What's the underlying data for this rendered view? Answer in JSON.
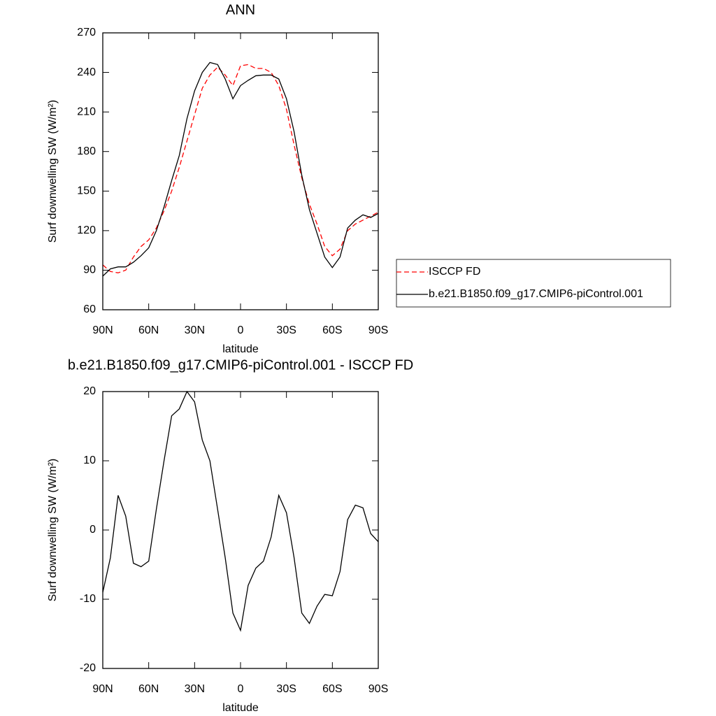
{
  "chart_data": [
    {
      "type": "line",
      "title": "ANN",
      "xlabel": "latitude",
      "ylabel": "Surf downwelling SW (W/m²)",
      "x": [
        90,
        85,
        80,
        75,
        70,
        65,
        60,
        55,
        50,
        45,
        40,
        35,
        30,
        25,
        20,
        15,
        10,
        5,
        0,
        -5,
        -10,
        -15,
        -20,
        -25,
        -30,
        -35,
        -40,
        -45,
        -50,
        -55,
        -60,
        -65,
        -70,
        -75,
        -80,
        -85,
        -90
      ],
      "xlim": [
        90,
        -90
      ],
      "xticks": [
        {
          "value": 90,
          "label": "90N"
        },
        {
          "value": 60,
          "label": "60N"
        },
        {
          "value": 30,
          "label": "30N"
        },
        0,
        {
          "value": -30,
          "label": "30S"
        },
        {
          "value": -60,
          "label": "60S"
        },
        {
          "value": -90,
          "label": "90S"
        }
      ],
      "ylim": [
        60,
        270
      ],
      "yticks": [
        60,
        90,
        120,
        150,
        180,
        210,
        240,
        270
      ],
      "legend": "right",
      "series": [
        {
          "name": "ISCCP FD",
          "color": "#ff0000",
          "dash": true,
          "values": [
            94,
            89,
            88,
            90,
            100,
            108,
            113,
            122,
            135,
            150,
            168,
            188,
            208,
            228,
            238,
            244,
            238,
            230,
            245,
            246,
            243,
            243,
            240,
            230,
            212,
            185,
            160,
            140,
            125,
            108,
            101,
            106,
            120,
            125,
            128,
            131,
            134
          ]
        },
        {
          "name": "b.e21.B1850.f09_g17.CMIP6-piControl.001",
          "color": "#000000",
          "dash": false,
          "values": [
            85.5,
            91,
            92.5,
            92.5,
            96,
            101,
            107,
            120,
            138,
            158,
            177,
            205,
            226,
            240,
            247.5,
            246,
            235,
            220,
            230,
            234,
            237.5,
            238,
            238,
            235,
            220,
            195,
            162,
            136,
            118,
            100,
            92,
            100,
            122,
            128,
            132,
            130,
            133
          ]
        }
      ]
    },
    {
      "type": "line",
      "title": "b.e21.B1850.f09_g17.CMIP6-piControl.001 - ISCCP FD",
      "xlabel": "latitude",
      "ylabel": "Surf downwelling SW (W/m²)",
      "x": [
        90,
        85,
        80,
        75,
        70,
        65,
        60,
        55,
        50,
        45,
        40,
        35,
        30,
        25,
        20,
        15,
        10,
        5,
        0,
        -5,
        -10,
        -15,
        -20,
        -25,
        -30,
        -35,
        -40,
        -45,
        -50,
        -55,
        -60,
        -65,
        -70,
        -75,
        -80,
        -85,
        -90
      ],
      "xlim": [
        90,
        -90
      ],
      "xticks": [
        {
          "value": 90,
          "label": "90N"
        },
        {
          "value": 60,
          "label": "60N"
        },
        {
          "value": 30,
          "label": "30N"
        },
        0,
        {
          "value": -30,
          "label": "30S"
        },
        {
          "value": -60,
          "label": "60S"
        },
        {
          "value": -90,
          "label": "90S"
        }
      ],
      "ylim": [
        -20,
        20
      ],
      "yticks": [
        -20,
        -10,
        0,
        10,
        20
      ],
      "color": "#000000",
      "values": [
        -9,
        -4,
        5,
        2,
        -4.8,
        -5.3,
        -4.5,
        3,
        10,
        16.5,
        17.5,
        20,
        18.5,
        13,
        10,
        3,
        -4,
        -12,
        -14.5,
        -8,
        -5.5,
        -4.5,
        -1,
        5,
        2.5,
        -4,
        -12,
        -13.5,
        -11,
        -9.3,
        -9.5,
        -6,
        1.5,
        3.6,
        3.2,
        -0.5,
        -1.7
      ]
    }
  ]
}
